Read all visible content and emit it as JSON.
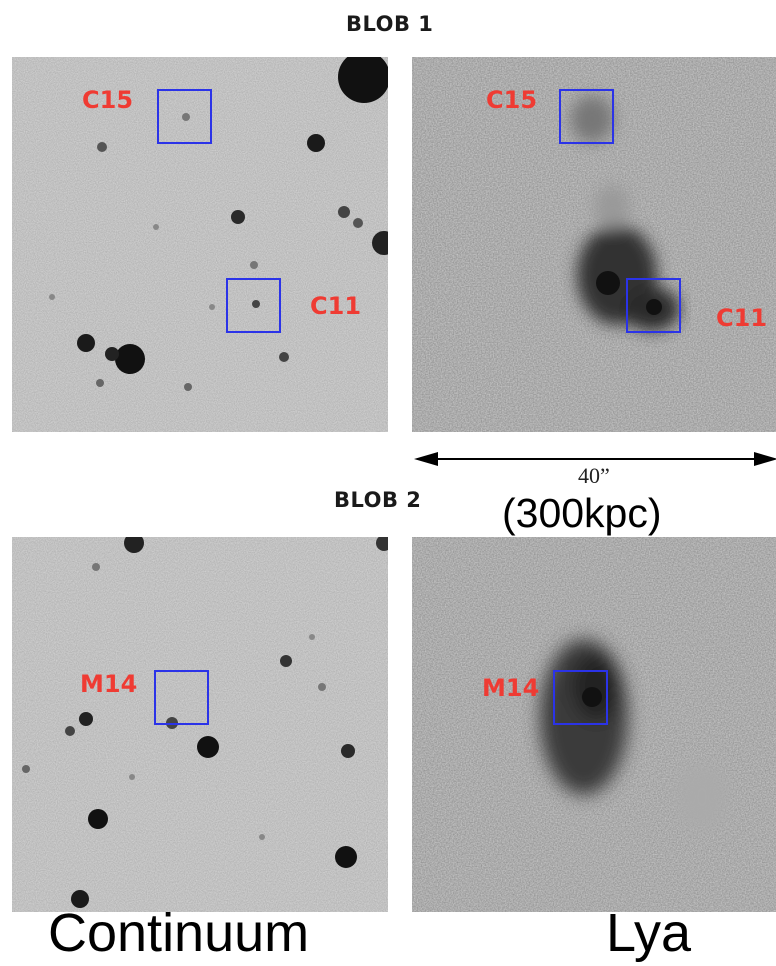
{
  "headings": {
    "blob1": "BLOB 1",
    "blob2": "BLOB 2"
  },
  "labels": {
    "c15": "C15",
    "c11": "C11",
    "m14": "M14"
  },
  "scale_bar": {
    "angular": "40”",
    "physical": "(300kpc)"
  },
  "columns": {
    "continuum": "Continuum",
    "lya": "Lya"
  },
  "colors": {
    "box": "#2b33e8",
    "label": "#ef3b33",
    "panel_background": "#d7d7d7"
  }
}
